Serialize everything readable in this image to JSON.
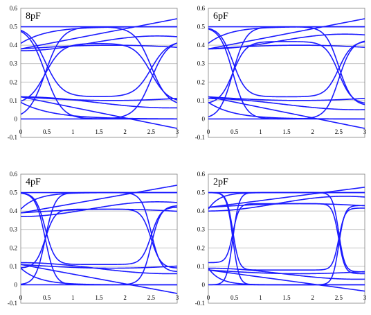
{
  "chart_data": [
    {
      "type": "line",
      "title": "8pF",
      "xlim": [
        0,
        3
      ],
      "ylim": [
        -0.1,
        0.6
      ],
      "xticks": [
        "0",
        "0.5",
        "1",
        "1.5",
        "2",
        "2.5",
        "3"
      ],
      "yticks": [
        "-0.1",
        "0",
        "0.1",
        "0.2",
        "0.3",
        "0.4",
        "0.5",
        "0.6"
      ],
      "grid": "horizontal",
      "line_color": "#1a1aff",
      "high": 0.5,
      "low": 0.0,
      "rise_high": 0.41,
      "rise_mid": 0.38,
      "fall_low": 0.09,
      "fall_mid": 0.12,
      "crossings": [
        0.47,
        2.5
      ],
      "tau": 0.38
    },
    {
      "type": "line",
      "title": "6pF",
      "xlim": [
        0,
        3
      ],
      "ylim": [
        -0.1,
        0.6
      ],
      "xticks": [
        "0",
        "0.5",
        "1",
        "1.5",
        "2",
        "2.5",
        "3"
      ],
      "yticks": [
        "-0.1",
        "0",
        "0.1",
        "0.2",
        "0.3",
        "0.4",
        "0.5",
        "0.6"
      ],
      "grid": "horizontal",
      "line_color": "#1a1aff",
      "high": 0.5,
      "low": 0.0,
      "rise_high": 0.42,
      "rise_mid": 0.38,
      "fall_low": 0.08,
      "fall_mid": 0.12,
      "crossings": [
        0.47,
        2.5
      ],
      "tau": 0.3
    },
    {
      "type": "line",
      "title": "4pF",
      "xlim": [
        0,
        3
      ],
      "ylim": [
        -0.1,
        0.6
      ],
      "xticks": [
        "0",
        "0.5",
        "1",
        "1.5",
        "2",
        "2.5",
        "3"
      ],
      "yticks": [
        "-0.1",
        "0",
        "0.1",
        "0.2",
        "0.3",
        "0.4",
        "0.5",
        "0.6"
      ],
      "grid": "horizontal",
      "line_color": "#1a1aff",
      "high": 0.5,
      "low": 0.0,
      "rise_high": 0.41,
      "rise_mid": 0.39,
      "fall_low": 0.09,
      "fall_mid": 0.11,
      "crossings": [
        0.47,
        2.5
      ],
      "tau": 0.22
    },
    {
      "type": "line",
      "title": "2pF",
      "xlim": [
        0,
        3
      ],
      "ylim": [
        -0.1,
        0.6
      ],
      "xticks": [
        "0",
        "0.5",
        "1",
        "1.5",
        "2",
        "2.5",
        "3"
      ],
      "yticks": [
        "-0.1",
        "0",
        "0.1",
        "0.2",
        "0.3",
        "0.4",
        "0.5",
        "0.6"
      ],
      "grid": "horizontal",
      "line_color": "#1a1aff",
      "high": 0.5,
      "low": 0.0,
      "rise_high": 0.44,
      "rise_mid": 0.42,
      "fall_low": 0.06,
      "fall_mid": 0.08,
      "crossings": [
        0.47,
        2.5
      ],
      "tau": 0.14
    }
  ]
}
